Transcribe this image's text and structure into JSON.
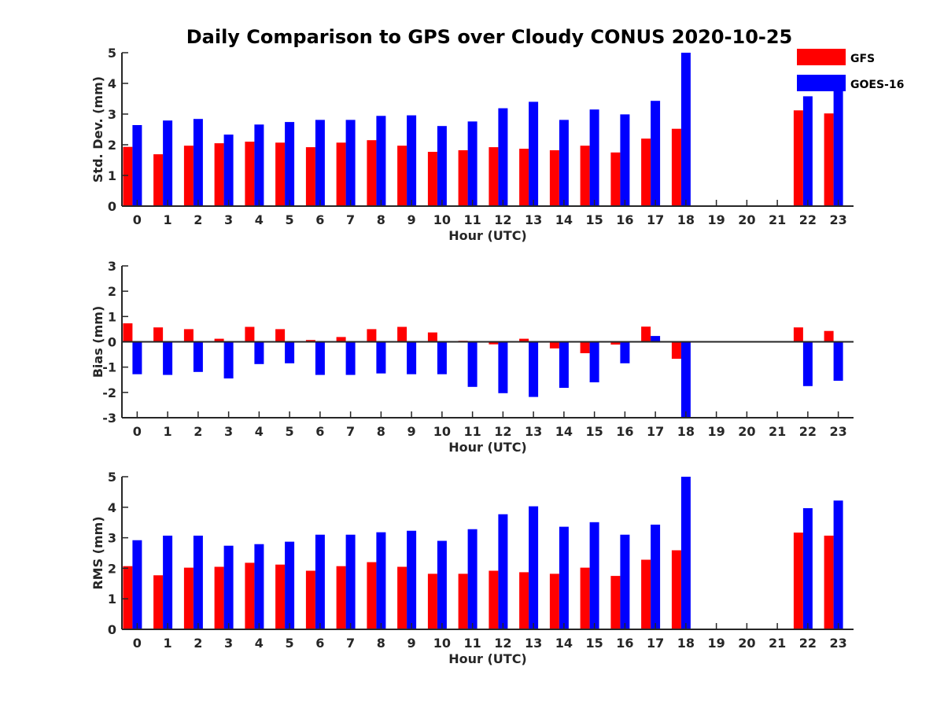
{
  "figure": {
    "title": "Daily Comparison to GPS over Cloudy CONUS 2020-10-25",
    "legend": {
      "placement": "top-right",
      "entries": [
        {
          "name": "GFS",
          "color": "#ff0000"
        },
        {
          "name": "GOES-16",
          "color": "#0000ff"
        }
      ]
    }
  },
  "chart_data": [
    {
      "type": "bar",
      "id": "std",
      "ylabel": "Std. Dev. (mm)",
      "xlabel": "Hour (UTC)",
      "ylim": [
        0,
        5
      ],
      "yticks": [
        0,
        1,
        2,
        3,
        4,
        5
      ],
      "categories": [
        "0",
        "1",
        "2",
        "3",
        "4",
        "5",
        "6",
        "7",
        "8",
        "9",
        "10",
        "11",
        "12",
        "13",
        "14",
        "15",
        "16",
        "17",
        "18",
        "19",
        "20",
        "21",
        "22",
        "23"
      ],
      "series": [
        {
          "name": "GFS",
          "color": "#ff0000",
          "values": [
            1.93,
            1.69,
            1.97,
            2.05,
            2.1,
            2.07,
            1.92,
            2.07,
            2.15,
            1.97,
            1.77,
            1.82,
            1.92,
            1.87,
            1.82,
            1.97,
            1.75,
            2.2,
            2.52,
            null,
            null,
            null,
            3.12,
            3.02
          ]
        },
        {
          "name": "GOES-16",
          "color": "#0000ff",
          "values": [
            2.64,
            2.79,
            2.84,
            2.33,
            2.66,
            2.74,
            2.81,
            2.81,
            2.94,
            2.96,
            2.61,
            2.76,
            3.19,
            3.4,
            2.81,
            3.15,
            2.99,
            3.43,
            5.0,
            null,
            null,
            null,
            3.58,
            3.76
          ]
        }
      ]
    },
    {
      "type": "bar",
      "id": "bias",
      "ylabel": "Bias (mm)",
      "xlabel": "Hour (UTC)",
      "ylim": [
        -3,
        3
      ],
      "yticks": [
        -3,
        -2,
        -1,
        0,
        1,
        2,
        3
      ],
      "categories": [
        "0",
        "1",
        "2",
        "3",
        "4",
        "5",
        "6",
        "7",
        "8",
        "9",
        "10",
        "11",
        "12",
        "13",
        "14",
        "15",
        "16",
        "17",
        "18",
        "19",
        "20",
        "21",
        "22",
        "23"
      ],
      "series": [
        {
          "name": "GFS",
          "color": "#ff0000",
          "values": [
            0.73,
            0.57,
            0.5,
            0.12,
            0.59,
            0.5,
            0.07,
            0.19,
            0.5,
            0.59,
            0.37,
            0.04,
            -0.1,
            0.12,
            -0.26,
            -0.45,
            -0.11,
            0.6,
            -0.67,
            null,
            null,
            null,
            0.57,
            0.43
          ]
        },
        {
          "name": "GOES-16",
          "color": "#0000ff",
          "values": [
            -1.28,
            -1.31,
            -1.19,
            -1.45,
            -0.88,
            -0.85,
            -1.31,
            -1.31,
            -1.25,
            -1.28,
            -1.28,
            -1.78,
            -2.03,
            -2.18,
            -1.82,
            -1.6,
            -0.85,
            0.23,
            -3.0,
            null,
            null,
            null,
            -1.75,
            -1.54
          ]
        }
      ]
    },
    {
      "type": "bar",
      "id": "rms",
      "ylabel": "RMS (mm)",
      "xlabel": "Hour (UTC)",
      "ylim": [
        0,
        5
      ],
      "yticks": [
        0,
        1,
        2,
        3,
        4,
        5
      ],
      "categories": [
        "0",
        "1",
        "2",
        "3",
        "4",
        "5",
        "6",
        "7",
        "8",
        "9",
        "10",
        "11",
        "12",
        "13",
        "14",
        "15",
        "16",
        "17",
        "18",
        "19",
        "20",
        "21",
        "22",
        "23"
      ],
      "series": [
        {
          "name": "GFS",
          "color": "#ff0000",
          "values": [
            2.07,
            1.77,
            2.02,
            2.05,
            2.18,
            2.12,
            1.92,
            2.07,
            2.2,
            2.05,
            1.82,
            1.82,
            1.92,
            1.87,
            1.82,
            2.02,
            1.75,
            2.28,
            2.59,
            null,
            null,
            null,
            3.17,
            3.07
          ]
        },
        {
          "name": "GOES-16",
          "color": "#0000ff",
          "values": [
            2.92,
            3.07,
            3.07,
            2.74,
            2.79,
            2.87,
            3.1,
            3.1,
            3.18,
            3.23,
            2.9,
            3.28,
            3.77,
            4.03,
            3.36,
            3.51,
            3.1,
            3.43,
            5.0,
            null,
            null,
            null,
            3.97,
            4.22
          ]
        }
      ]
    }
  ]
}
